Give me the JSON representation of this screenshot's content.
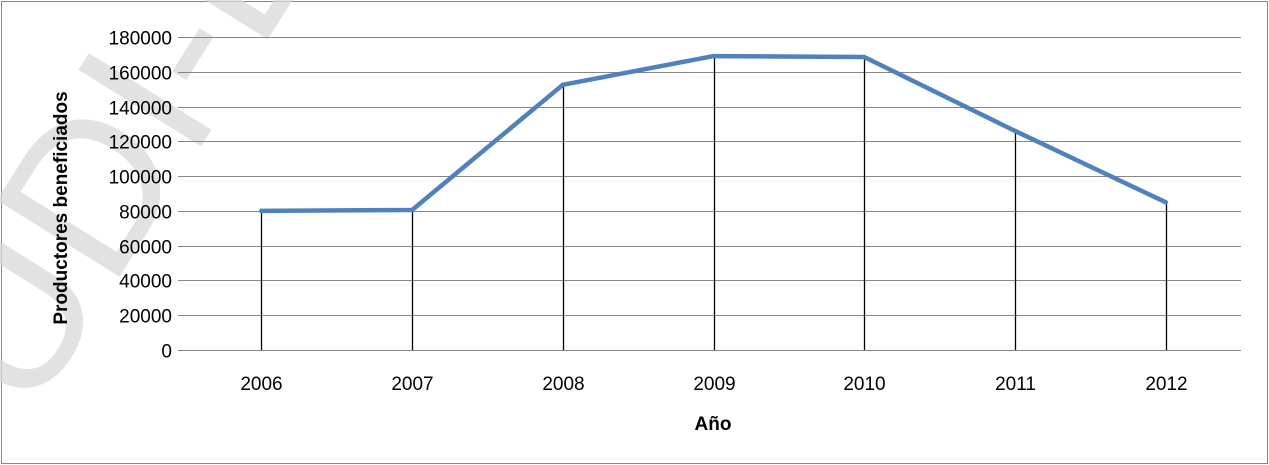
{
  "watermark_text": "UDI-D",
  "colors": {
    "series_line": "#4f81bd",
    "gridline": "#868686",
    "drop_line": "#000000",
    "watermark": "#d9d9d9"
  },
  "chart_data": {
    "type": "line",
    "title": "",
    "xlabel": "Año",
    "ylabel": "Productores beneficiados",
    "categories": [
      "2006",
      "2007",
      "2008",
      "2009",
      "2010",
      "2011",
      "2012"
    ],
    "series": [
      {
        "values": [
          80000,
          80500,
          152500,
          169000,
          168500,
          126000,
          85000
        ]
      }
    ],
    "ylim": [
      0,
      180000
    ],
    "yticks": [
      0,
      20000,
      40000,
      60000,
      80000,
      100000,
      120000,
      140000,
      160000,
      180000
    ],
    "grid": true,
    "drop_lines": true,
    "legend": "none"
  }
}
